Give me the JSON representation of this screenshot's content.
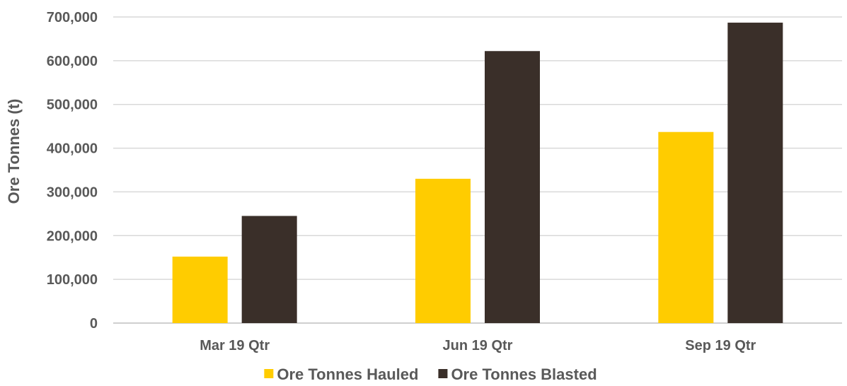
{
  "chart_data": {
    "type": "bar",
    "title": "",
    "xlabel": "",
    "ylabel": "Ore Tonnes (t)",
    "categories": [
      "Mar 19 Qtr",
      "Jun 19 Qtr",
      "Sep 19 Qtr"
    ],
    "series": [
      {
        "name": "Ore Tonnes Hauled",
        "color": "#FFCC00",
        "values": [
          152000,
          330000,
          437000
        ]
      },
      {
        "name": "Ore Tonnes Blasted",
        "color": "#3A2F29",
        "values": [
          245000,
          622000,
          687000
        ]
      }
    ],
    "ylim": [
      0,
      700000
    ],
    "yticks": [
      0,
      100000,
      200000,
      300000,
      400000,
      500000,
      600000,
      700000
    ],
    "ytick_labels": [
      "0",
      "100,000",
      "200,000",
      "300,000",
      "400,000",
      "500,000",
      "600,000",
      "700,000"
    ],
    "grid": true,
    "legend_position": "bottom"
  }
}
